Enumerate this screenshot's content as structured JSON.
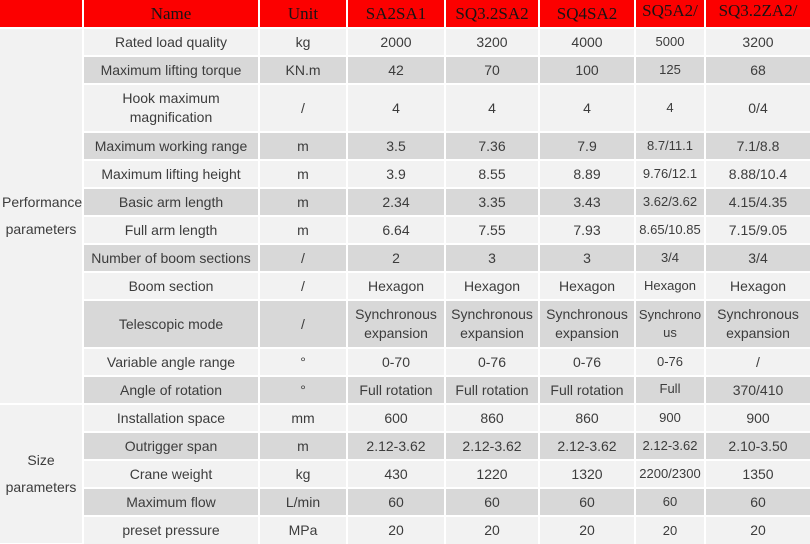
{
  "table": {
    "columns": [
      "Name",
      "Unit",
      "SA2SA1",
      "SQ3.2SA2",
      "SQ4SA2",
      "SQ5A2/",
      "SQ3.2ZA2/"
    ],
    "groups": [
      {
        "label": "Performance parameters",
        "rows": 12
      },
      {
        "label": "Size parameters",
        "rows": 5
      }
    ],
    "rows": [
      {
        "name": "Rated load quality",
        "unit": "kg",
        "values": [
          "2000",
          "3200",
          "4000",
          "5000",
          "3200"
        ]
      },
      {
        "name": "Maximum lifting torque",
        "unit": "KN.m",
        "values": [
          "42",
          "70",
          "100",
          "125",
          "68"
        ]
      },
      {
        "name": "Hook maximum magnification",
        "unit": "/",
        "values": [
          "4",
          "4",
          "4",
          "4",
          "0/4"
        ],
        "tall": true
      },
      {
        "name": "Maximum working range",
        "unit": "m",
        "values": [
          "3.5",
          "7.36",
          "7.9",
          "8.7/11.1",
          "7.1/8.8"
        ]
      },
      {
        "name": "Maximum lifting height",
        "unit": "m",
        "values": [
          "3.9",
          "8.55",
          "8.89",
          "9.76/12.1",
          "8.88/10.4"
        ]
      },
      {
        "name": "Basic arm length",
        "unit": "m",
        "values": [
          "2.34",
          "3.35",
          "3.43",
          "3.62/3.62",
          "4.15/4.35"
        ]
      },
      {
        "name": "Full arm length",
        "unit": "m",
        "values": [
          "6.64",
          "7.55",
          "7.93",
          "8.65/10.85",
          "7.15/9.05"
        ]
      },
      {
        "name": "Number of boom sections",
        "unit": "/",
        "values": [
          "2",
          "3",
          "3",
          "3/4",
          "3/4"
        ]
      },
      {
        "name": "Boom section",
        "unit": "/",
        "values": [
          "Hexagon",
          "Hexagon",
          "Hexagon",
          "Hexagon",
          "Hexagon"
        ]
      },
      {
        "name": "Telescopic mode",
        "unit": "/",
        "values": [
          "Synchronous expansion",
          "Synchronous expansion",
          "Synchronous expansion",
          "Synchronous",
          "Synchronous expansion"
        ],
        "tall": true
      },
      {
        "name": "Variable angle range",
        "unit": "°",
        "values": [
          "0-70",
          "0-76",
          "0-76",
          "0-76",
          "/"
        ]
      },
      {
        "name": "Angle of rotation",
        "unit": "°",
        "values": [
          "Full rotation",
          "Full rotation",
          "Full rotation",
          "Full",
          "370/410"
        ]
      },
      {
        "name": "Installation space",
        "unit": "mm",
        "values": [
          "600",
          "860",
          "860",
          "900",
          "900"
        ]
      },
      {
        "name": "Outrigger span",
        "unit": "m",
        "values": [
          "2.12-3.62",
          "2.12-3.62",
          "2.12-3.62",
          "2.12-3.62",
          "2.10-3.50"
        ]
      },
      {
        "name": "Crane weight",
        "unit": "kg",
        "values": [
          "430",
          "1220",
          "1320",
          "2200/2300",
          "1350"
        ]
      },
      {
        "name": "Maximum flow",
        "unit": "L/min",
        "values": [
          "60",
          "60",
          "60",
          "60",
          "60"
        ]
      },
      {
        "name": "preset pressure",
        "unit": "MPa",
        "values": [
          "20",
          "20",
          "20",
          "20",
          "20"
        ]
      }
    ],
    "colors": {
      "header_bg": "#fc0000",
      "row_light": "#f2f2f2",
      "row_dark": "#d8d8d8",
      "grid": "#ffffff",
      "body_text": "#3c3c3c",
      "header_text": "#191414"
    }
  }
}
